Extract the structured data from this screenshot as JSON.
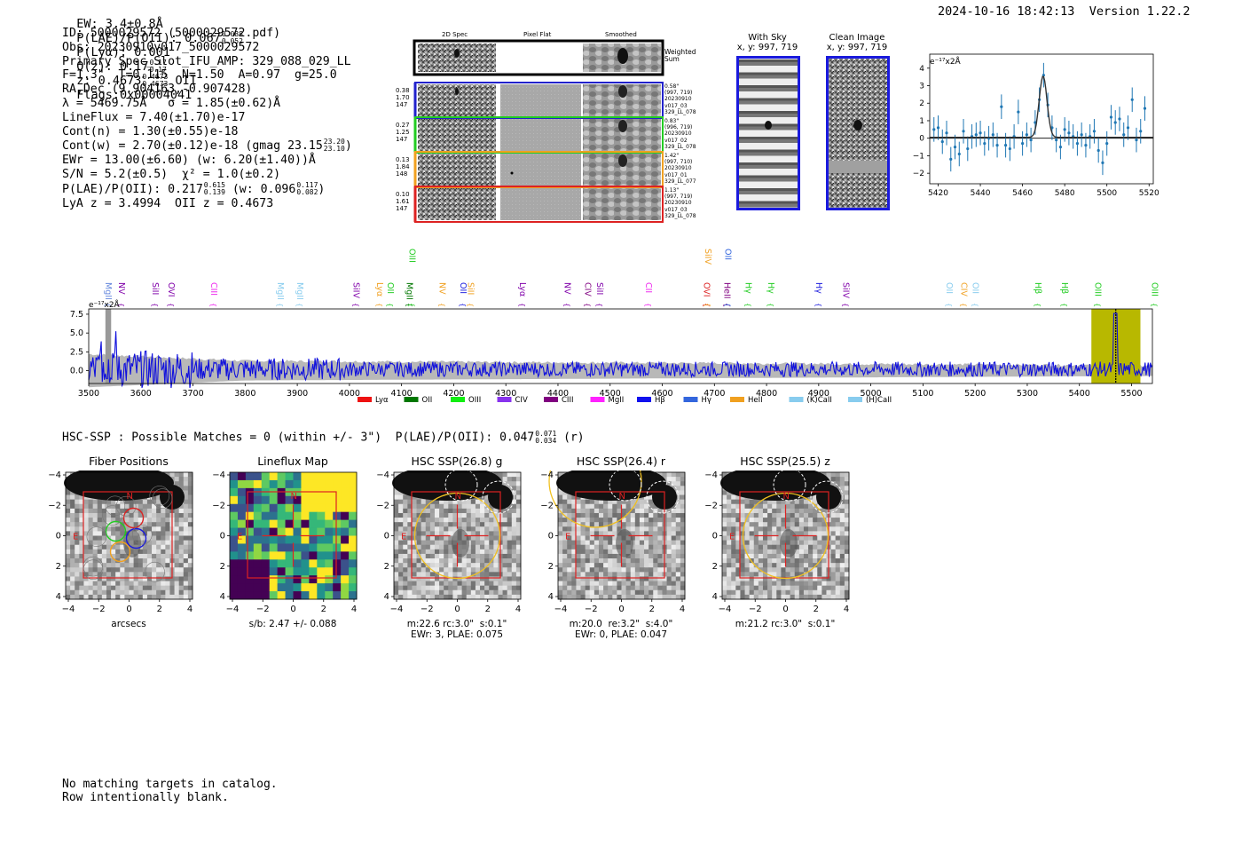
{
  "header": {
    "ew": "EW: 3.4±0.8Å",
    "plae": "P(LAE)/P(OII): 0.067",
    "plae_hi": "0.088",
    "plae_lo": "0.052",
    "plya": "P(Lyα): 0.001",
    "qz": "Q(z): 0.17",
    "qz_hi": "0.17",
    "qz_lo": "0.17",
    "z": "z: 0.4673",
    "z_hi": "0.4673",
    "z_lo": "0.4673",
    "z_line": "OII",
    "flags": "Flags:0x00004041",
    "datetime": "2024-10-16 18:42:13",
    "version": "Version 1.22.2"
  },
  "info": {
    "id": "ID: 5000029572 (5000029572.pdf)",
    "obs": "Obs: 20230910v017_5000029572",
    "primary": "Primary Spec_Slot_IFU_AMP: 329_088_029_LL",
    "fparams": "F=1.3\"  T=0.115  N=1.50  A=0.97  g=25.0",
    "radec": "RA,Dec (9.904163,-0.907428)",
    "lambda": "λ = 5469.75Å   σ = 1.85(±0.62)Å",
    "lineflux": "LineFlux = 7.40(±1.70)e-17",
    "contn": "Cont(n) = 1.30(±0.55)e-18",
    "contw": "Cont(w) = 2.70(±0.12)e-18 (gmag 23.15",
    "gmag_hi": "23.20",
    "gmag_lo": "23.10",
    "contw_end": ")",
    "ewr": "EWr = 13.00(±6.60) (w: 6.20(±1.40))Å",
    "sn": "S/N = 5.2(±0.5)  χ² = 1.0(±0.2)",
    "plae2": "P(LAE)/P(OII): 0.217",
    "plae2_hi": "0.615",
    "plae2_lo": "0.139",
    "plae2_w": "(w: 0.096",
    "plae2_w_hi": "0.117",
    "plae2_w_lo": "0.082",
    "plae2_end": ")",
    "lyaz": "LyA z = 3.4994  OII z = 0.4673"
  },
  "cutouts": {
    "col_headers": [
      "2D Spec",
      "Pixel Flat",
      "Smoothed"
    ],
    "weighted_label": "Weighted\nSum",
    "rows": [
      {
        "left": "0.38\n1.70\n147",
        "right": "0.58\"\n(997, 719)\n20230910\nv017_03\n329_LL_078",
        "color": "#2222cc"
      },
      {
        "left": "0.27\n1.25\n147",
        "right": "0.83\"\n(996, 719)\n20230910\nv017_02\n329_LL_078",
        "color": "#22cc22"
      },
      {
        "left": "0.13\n1.84\n148",
        "right": "1.42\"\n(997, 710)\n20230910\nv017_01\n329_LL_077",
        "color": "#f0a020"
      },
      {
        "left": "0.10\n1.61\n147",
        "right": "1.13\"\n(997, 719)\n20230910\nv017_03\n329_LL_078",
        "color": "#dd2222"
      }
    ]
  },
  "sky_panels": {
    "with_sky_title": "With Sky",
    "with_sky_coords": "x, y: 997, 719",
    "clean_title": "Clean Image",
    "clean_coords": "x, y: 997, 719"
  },
  "chart_data": [
    {
      "type": "line",
      "title": "Emission line zoom",
      "ylabel_annot": "e⁻¹⁷x2Å",
      "xlim": [
        5416,
        5522
      ],
      "ylim": [
        -2.6,
        4.8
      ],
      "xticks": [
        5420,
        5440,
        5460,
        5480,
        5500,
        5520
      ],
      "yticks": [
        -2,
        -1,
        0,
        1,
        2,
        3,
        4
      ],
      "series": [
        {
          "name": "data",
          "style": "errorbar",
          "color": "#1f77b4",
          "x": [
            5418,
            5420,
            5422,
            5424,
            5426,
            5428,
            5430,
            5432,
            5434,
            5436,
            5438,
            5440,
            5442,
            5444,
            5446,
            5448,
            5450,
            5452,
            5454,
            5456,
            5458,
            5460,
            5462,
            5464,
            5466,
            5468,
            5470,
            5472,
            5474,
            5476,
            5478,
            5480,
            5482,
            5484,
            5486,
            5488,
            5490,
            5492,
            5494,
            5496,
            5498,
            5500,
            5502,
            5504,
            5506,
            5508,
            5510,
            5512,
            5514,
            5516,
            5518
          ],
          "y": [
            0.5,
            0.6,
            -0.2,
            0.3,
            -1.2,
            -0.5,
            -0.9,
            0.4,
            -0.6,
            0.1,
            0.2,
            0.3,
            -0.3,
            0.0,
            0.2,
            -0.4,
            1.8,
            -0.4,
            -0.6,
            0.1,
            1.5,
            -0.3,
            0.2,
            -0.1,
            0.9,
            2.2,
            3.6,
            1.9,
            0.6,
            -0.1,
            -0.5,
            0.5,
            0.3,
            0.1,
            -0.3,
            0.2,
            -0.4,
            0.1,
            0.4,
            -0.7,
            -1.4,
            -0.3,
            1.2,
            0.9,
            1.1,
            0.2,
            0.6,
            2.2,
            -0.1,
            0.4,
            1.7
          ],
          "err": [
            0.7,
            0.7,
            0.7,
            0.7,
            0.7,
            0.7,
            0.7,
            0.7,
            0.7,
            0.7,
            0.7,
            0.7,
            0.7,
            0.7,
            0.7,
            0.7,
            0.7,
            0.7,
            0.7,
            0.7,
            0.7,
            0.7,
            0.7,
            0.7,
            0.7,
            0.7,
            0.7,
            0.7,
            0.7,
            0.7,
            0.7,
            0.7,
            0.7,
            0.7,
            0.7,
            0.7,
            0.7,
            0.7,
            0.7,
            0.7,
            0.7,
            0.7,
            0.7,
            0.7,
            0.7,
            0.7,
            0.7,
            0.7,
            0.7,
            0.7,
            0.7
          ]
        },
        {
          "name": "fit",
          "style": "line",
          "color": "#333333",
          "type": "gaussian",
          "amplitude": 3.5,
          "center": 5469.75,
          "sigma": 1.85,
          "baseline": 0.05
        }
      ]
    },
    {
      "type": "line",
      "title": "Full spectrum",
      "ylabel_annot": "e⁻¹⁷x2Å",
      "xlim": [
        3500,
        5540
      ],
      "ylim": [
        -1.7,
        8.2
      ],
      "xticks": [
        3500,
        3600,
        3700,
        3800,
        3900,
        4000,
        4100,
        4200,
        4300,
        4400,
        4500,
        4600,
        4700,
        4800,
        4900,
        5000,
        5100,
        5200,
        5300,
        5400,
        5500
      ],
      "yticks": [
        0.0,
        2.5,
        5.0,
        7.5
      ],
      "series": [
        {
          "name": "spectrum",
          "color": "#1010dd"
        },
        {
          "name": "error",
          "color": "#b8b8b8"
        }
      ],
      "highlight_band": {
        "x0": 5423,
        "x1": 5517,
        "color": "#b8b800"
      },
      "line_marks": [
        {
          "label": "MgII",
          "x": 3527,
          "color": "#6688dd"
        },
        {
          "label": "NV",
          "x": 3553,
          "color": "#8000aa"
        },
        {
          "label": "SiII",
          "x": 3617,
          "color": "#8000aa"
        },
        {
          "label": "OVI",
          "x": 3648,
          "color": "#8000aa"
        },
        {
          "label": "CIII",
          "x": 3730,
          "color": "#ee22ee"
        },
        {
          "label": "MgII",
          "x": 3857,
          "color": "#88ccee"
        },
        {
          "label": "MgII",
          "x": 3895,
          "color": "#88ccee"
        },
        {
          "label": "SiIV",
          "x": 4003,
          "color": "#8000aa"
        },
        {
          "label": "Lyα",
          "x": 4048,
          "color": "#f0a020"
        },
        {
          "label": "OII",
          "x": 4068,
          "color": "#22cc22"
        },
        {
          "label": "MgII",
          "x": 4105,
          "color": "#007700"
        },
        {
          "label": "OIII",
          "x": 4110,
          "color": "#22cc22"
        },
        {
          "label": "NV",
          "x": 4168,
          "color": "#f0a020"
        },
        {
          "label": "OII",
          "x": 4208,
          "color": "#1a1add"
        },
        {
          "label": "SiII",
          "x": 4222,
          "color": "#f0a020"
        },
        {
          "label": "Lyα",
          "x": 4322,
          "color": "#8000aa"
        },
        {
          "label": "NV",
          "x": 4408,
          "color": "#8000aa"
        },
        {
          "label": "CIV",
          "x": 4447,
          "color": "#800080"
        },
        {
          "label": "SiII",
          "x": 4470,
          "color": "#8000aa"
        },
        {
          "label": "CII",
          "x": 4563,
          "color": "#ee22ee"
        },
        {
          "label": "OVI",
          "x": 4675,
          "color": "#dd2222"
        },
        {
          "label": "SiIV",
          "x": 4677,
          "color": "#f0a020"
        },
        {
          "label": "HeII",
          "x": 4714,
          "color": "#800080"
        },
        {
          "label": "OII",
          "x": 4716,
          "color": "#3366dd"
        },
        {
          "label": "Hγ",
          "x": 4755,
          "color": "#22cc22"
        },
        {
          "label": "Hγ",
          "x": 4798,
          "color": "#22cc22"
        },
        {
          "label": "Hγ",
          "x": 4890,
          "color": "#1a1add"
        },
        {
          "label": "SiIV",
          "x": 4942,
          "color": "#8000aa"
        },
        {
          "label": "OII",
          "x": 5140,
          "color": "#88ccee"
        },
        {
          "label": "CIV",
          "x": 5168,
          "color": "#f0a020"
        },
        {
          "label": "OII",
          "x": 5190,
          "color": "#88ccee"
        },
        {
          "label": "Hβ",
          "x": 5310,
          "color": "#22cc22"
        },
        {
          "label": "Hβ",
          "x": 5361,
          "color": "#22cc22"
        },
        {
          "label": "OIII",
          "x": 5425,
          "color": "#22cc22"
        },
        {
          "label": "OIII",
          "x": 5534,
          "color": "#22cc22"
        }
      ],
      "legend": [
        {
          "label": "Lyα",
          "color": "#ee1111"
        },
        {
          "label": "OII",
          "color": "#007700"
        },
        {
          "label": "OIII",
          "color": "#11ee11"
        },
        {
          "label": "CIV",
          "color": "#8833ee"
        },
        {
          "label": "CIII",
          "color": "#800080"
        },
        {
          "label": "MgII",
          "color": "#ff22ff"
        },
        {
          "label": "Hβ",
          "color": "#1111ee"
        },
        {
          "label": "Hγ",
          "color": "#3366dd"
        },
        {
          "label": "HeII",
          "color": "#f0a020"
        },
        {
          "label": "(K)CaII",
          "color": "#88ccee"
        },
        {
          "label": "(H)CaII",
          "color": "#88ccee"
        }
      ]
    }
  ],
  "hsc": {
    "summary": "HSC-SSP : Possible Matches = 0 (within +/- 3\")  P(LAE)/P(OII): 0.047",
    "summary_hi": "0.071",
    "summary_lo": "0.034",
    "summary_end": "(r)",
    "panels": [
      {
        "title": "Fiber Positions",
        "caption": "arcsecs",
        "kind": "fibers"
      },
      {
        "title": "Lineflux Map",
        "caption": "s/b: 2.47 +/- 0.088",
        "kind": "lineflux"
      },
      {
        "title": "HSC SSP(26.8) g",
        "caption": "m:22.6 rc:3.0\"  s:0.1\"\nEWr: 3, PLAE: 0.075",
        "kind": "g"
      },
      {
        "title": "HSC SSP(26.4) r",
        "caption": "m:20.0  re:3.2\"  s:4.0\"\nEWr: 0, PLAE: 0.047",
        "kind": "r"
      },
      {
        "title": "HSC SSP(25.5) z",
        "caption": "m:21.2 rc:3.0\"  s:0.1\"",
        "kind": "z"
      }
    ],
    "north_label": "N",
    "east_label": "E",
    "axis_ticks": [
      "−4",
      "−2",
      "0",
      "2",
      "4"
    ]
  },
  "footer": {
    "line1": "No matching targets in catalog.",
    "line2": "Row intentionally blank."
  }
}
